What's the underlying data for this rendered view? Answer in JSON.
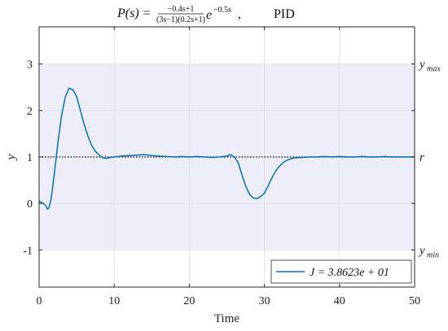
{
  "title": {
    "lhs": "P(s) =",
    "num": "−0.4s+1",
    "den": "(3s−1)(0.2s+1)",
    "exp_base": "e",
    "exp_power": "−0.5s",
    "controller": "PID"
  },
  "right_labels": {
    "ymax": {
      "base": "y",
      "sub": "max"
    },
    "r": {
      "base": "r",
      "sub": ""
    },
    "ymin": {
      "base": "y",
      "sub": "min"
    }
  },
  "legend": {
    "label": "J = 3.8623e + 01"
  },
  "colors": {
    "series": "#0072BD",
    "band": "#eeeefb",
    "reference": "#000000",
    "grid": "#dcdcdc"
  },
  "chart_data": {
    "type": "line",
    "title": "P(s) = (−0.4s+1)/((3s−1)(0.2s+1)) e^(−0.5s), PID",
    "xlabel": "Time",
    "ylabel": "y",
    "xlim": [
      0,
      50
    ],
    "ylim": [
      -1.8,
      3.8
    ],
    "xticks": [
      0,
      10,
      20,
      30,
      40,
      50
    ],
    "yticks": [
      -1,
      0,
      1,
      2,
      3
    ],
    "ytick_labels": [
      "-1",
      "0",
      "1",
      "2",
      "3"
    ],
    "grid": true,
    "legend_position": "bottom-right",
    "band": {
      "ymin": -1,
      "ymax": 3
    },
    "reference": {
      "name": "r",
      "y": 1,
      "style": "dotted"
    },
    "series": [
      {
        "name": "J = 3.8623e + 01",
        "x": [
          0,
          0.3,
          0.6,
          0.9,
          1.1,
          1.3,
          1.6,
          2.0,
          2.5,
          3.0,
          3.5,
          4.0,
          4.5,
          5.0,
          5.5,
          6.0,
          6.5,
          7.0,
          7.5,
          8.0,
          8.5,
          9.0,
          9.5,
          10,
          11,
          12,
          13,
          14,
          15,
          16,
          17,
          18,
          19,
          20,
          21,
          22,
          23,
          24,
          25,
          25.5,
          26,
          26.5,
          27,
          27.5,
          28,
          28.5,
          29,
          29.5,
          30,
          30.5,
          31,
          31.5,
          32,
          32.5,
          33,
          33.5,
          34,
          35,
          36,
          37,
          38,
          39,
          40,
          41,
          42,
          43,
          44,
          45,
          46,
          47,
          48,
          49,
          50
        ],
        "y": [
          0.05,
          0.02,
          0.0,
          -0.05,
          -0.12,
          -0.1,
          0.1,
          0.6,
          1.3,
          1.9,
          2.3,
          2.48,
          2.45,
          2.3,
          2.0,
          1.7,
          1.45,
          1.25,
          1.12,
          1.04,
          0.98,
          0.97,
          0.99,
          1.0,
          1.02,
          1.03,
          1.04,
          1.05,
          1.03,
          1.02,
          1.01,
          1.0,
          1.01,
          1.0,
          1.01,
          1.0,
          0.99,
          1.0,
          1.02,
          1.05,
          1.0,
          0.88,
          0.62,
          0.38,
          0.2,
          0.12,
          0.1,
          0.15,
          0.22,
          0.38,
          0.55,
          0.7,
          0.8,
          0.88,
          0.93,
          0.96,
          0.98,
          0.99,
          1.0,
          1.0,
          1.01,
          1.0,
          1.01,
          1.0,
          1.0,
          1.01,
          1.0,
          1.0,
          1.01,
          1.0,
          1.0,
          1.0,
          1.0
        ]
      }
    ]
  }
}
